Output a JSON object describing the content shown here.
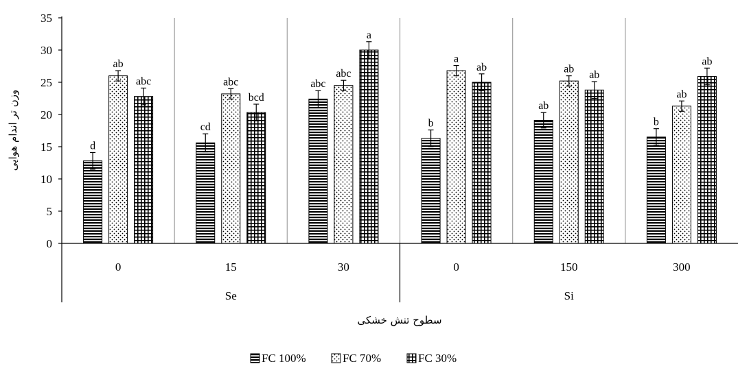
{
  "chart_data": {
    "type": "bar",
    "title": "",
    "xlabel": "سطوح تنش خشکی",
    "ylabel": "وزن تر اندام هوایی",
    "ylim": [
      0,
      35
    ],
    "yticks": [
      0,
      5,
      10,
      15,
      20,
      25,
      30,
      35
    ],
    "grid": false,
    "legend_position": "bottom",
    "categories": [
      "0",
      "15",
      "30",
      "0",
      "150",
      "300"
    ],
    "groups": [
      {
        "label": "Se",
        "categories": [
          "0",
          "15",
          "30"
        ]
      },
      {
        "label": "Si",
        "categories": [
          "0",
          "150",
          "300"
        ]
      }
    ],
    "series": [
      {
        "name": "FC 100%",
        "pattern": "horizontal-lines",
        "values": [
          12.8,
          15.6,
          22.4,
          16.3,
          19.1,
          16.5
        ],
        "errors": [
          1.3,
          1.4,
          1.3,
          1.3,
          1.2,
          1.3
        ],
        "labels": [
          "d",
          "cd",
          "abc",
          "b",
          "ab",
          "b"
        ]
      },
      {
        "name": "FC 70%",
        "pattern": "dots",
        "values": [
          26.0,
          23.2,
          24.5,
          26.8,
          25.2,
          21.3
        ],
        "errors": [
          0.8,
          0.8,
          0.8,
          0.8,
          0.8,
          0.8
        ],
        "labels": [
          "ab",
          "abc",
          "abc",
          "a",
          "ab",
          "ab"
        ]
      },
      {
        "name": "FC 30%",
        "pattern": "grid",
        "values": [
          22.8,
          20.3,
          30.0,
          25.0,
          23.8,
          25.9
        ],
        "errors": [
          1.3,
          1.3,
          1.3,
          1.3,
          1.3,
          1.3
        ],
        "labels": [
          "abc",
          "bcd",
          "a",
          "ab",
          "ab",
          "ab"
        ]
      }
    ]
  }
}
